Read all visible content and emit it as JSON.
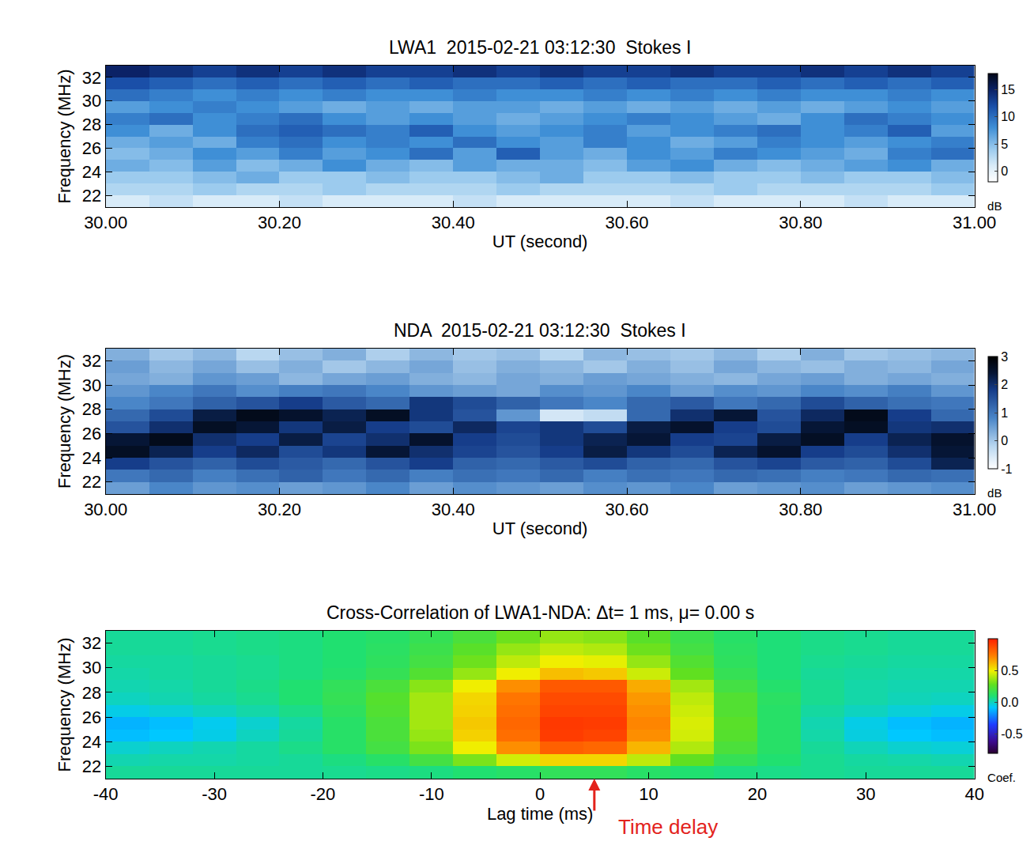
{
  "chart_data": [
    {
      "type": "heatmap",
      "title": "LWA1  2015-02-21 03:12:30  Stokes I",
      "x_label": "UT (second)",
      "y_label": "Frequency (MHz)",
      "x": [
        30.025,
        30.075,
        30.125,
        30.175,
        30.225,
        30.275,
        30.325,
        30.375,
        30.425,
        30.475,
        30.525,
        30.575,
        30.625,
        30.675,
        30.725,
        30.775,
        30.825,
        30.875,
        30.925,
        30.975
      ],
      "y": [
        21.5,
        22.5,
        23.5,
        24.5,
        25.5,
        26.5,
        27.5,
        28.5,
        29.5,
        30.5,
        31.5,
        32.5
      ],
      "z": [
        [
          1,
          2,
          1,
          1,
          2,
          1,
          1,
          1,
          2,
          1,
          1,
          1,
          1,
          2,
          1,
          1,
          1,
          2,
          1,
          1
        ],
        [
          3,
          3,
          4,
          3,
          3,
          4,
          3,
          3,
          3,
          4,
          3,
          3,
          3,
          3,
          4,
          3,
          3,
          3,
          3,
          4
        ],
        [
          4,
          4,
          5,
          6,
          4,
          4,
          5,
          4,
          4,
          5,
          6,
          4,
          4,
          5,
          4,
          4,
          5,
          4,
          4,
          5
        ],
        [
          6,
          5,
          7,
          5,
          6,
          8,
          6,
          5,
          7,
          6,
          6,
          5,
          7,
          8,
          6,
          5,
          6,
          7,
          8,
          6
        ],
        [
          5,
          6,
          8,
          7,
          9,
          7,
          8,
          10,
          7,
          11,
          7,
          6,
          8,
          7,
          9,
          8,
          7,
          6,
          9,
          10
        ],
        [
          6,
          7,
          6,
          9,
          10,
          8,
          9,
          8,
          10,
          8,
          7,
          9,
          8,
          6,
          7,
          9,
          8,
          7,
          8,
          9
        ],
        [
          8,
          6,
          8,
          10,
          11,
          10,
          9,
          11,
          8,
          7,
          8,
          9,
          7,
          8,
          9,
          10,
          8,
          9,
          11,
          7
        ],
        [
          9,
          10,
          8,
          9,
          10,
          8,
          7,
          8,
          7,
          6,
          7,
          8,
          9,
          8,
          7,
          6,
          8,
          10,
          9,
          8
        ],
        [
          7,
          8,
          9,
          8,
          7,
          6,
          7,
          6,
          7,
          7,
          6,
          7,
          6,
          7,
          6,
          7,
          6,
          7,
          8,
          7
        ],
        [
          10,
          9,
          8,
          9,
          8,
          9,
          8,
          8,
          9,
          8,
          8,
          9,
          8,
          9,
          8,
          9,
          8,
          8,
          9,
          8
        ],
        [
          12,
          11,
          10,
          11,
          10,
          11,
          10,
          11,
          10,
          10,
          11,
          10,
          11,
          10,
          10,
          11,
          10,
          11,
          10,
          11
        ],
        [
          15,
          14,
          13,
          14,
          13,
          14,
          13,
          13,
          14,
          13,
          14,
          13,
          13,
          14,
          13,
          13,
          14,
          13,
          14,
          13
        ]
      ],
      "xlim": [
        30,
        31
      ],
      "xticks": [
        {
          "value": 30,
          "label": "30.00"
        },
        {
          "value": 30.2,
          "label": "30.20"
        },
        {
          "value": 30.4,
          "label": "30.40"
        },
        {
          "value": 30.6,
          "label": "30.60"
        },
        {
          "value": 30.8,
          "label": "30.80"
        },
        {
          "value": 31,
          "label": "31.00"
        }
      ],
      "ylim": [
        21,
        33
      ],
      "yticks": [
        22,
        24,
        26,
        28,
        30,
        32
      ],
      "colorbar": {
        "label": "dB",
        "zlim": [
          -2,
          18
        ],
        "ticks": [
          0,
          5,
          10,
          15
        ]
      }
    },
    {
      "type": "heatmap",
      "title": "NDA  2015-02-21 03:12:30  Stokes I",
      "x_label": "UT (second)",
      "y_label": "Frequency (MHz)",
      "x": [
        30.025,
        30.075,
        30.125,
        30.175,
        30.225,
        30.275,
        30.325,
        30.375,
        30.425,
        30.475,
        30.525,
        30.575,
        30.625,
        30.675,
        30.725,
        30.775,
        30.825,
        30.875,
        30.925,
        30.975
      ],
      "y": [
        21.5,
        22.5,
        23.5,
        24.5,
        25.5,
        26.5,
        27.5,
        28.5,
        29.5,
        30.5,
        31.5,
        32.5
      ],
      "z": [
        [
          0.5,
          0.8,
          0.6,
          0.7,
          0.5,
          0.6,
          0.8,
          0.5,
          0.7,
          0.6,
          0.5,
          0.7,
          0.6,
          0.8,
          0.5,
          0.6,
          0.7,
          0.5,
          0.6,
          0.7
        ],
        [
          1.0,
          1.2,
          0.9,
          1.1,
          1.3,
          1.0,
          1.2,
          0.9,
          1.1,
          1.0,
          1.2,
          0.9,
          1.1,
          1.0,
          1.2,
          1.1,
          0.9,
          1.0,
          1.2,
          1.1
        ],
        [
          1.8,
          1.5,
          1.3,
          1.6,
          1.4,
          1.2,
          1.5,
          1.8,
          1.3,
          1.2,
          1.4,
          1.6,
          1.3,
          1.2,
          1.5,
          1.7,
          1.4,
          1.3,
          1.6,
          2.2
        ],
        [
          2.6,
          2.2,
          1.8,
          2.1,
          1.6,
          1.9,
          2.4,
          2.0,
          1.7,
          1.5,
          1.8,
          2.3,
          1.9,
          1.6,
          2.2,
          2.5,
          1.8,
          1.6,
          2.0,
          2.4
        ],
        [
          2.4,
          2.7,
          2.0,
          1.8,
          2.3,
          1.7,
          2.0,
          2.5,
          1.8,
          1.6,
          1.9,
          2.2,
          2.4,
          1.8,
          1.7,
          2.3,
          2.6,
          1.8,
          2.2,
          2.5
        ],
        [
          1.5,
          2.0,
          2.6,
          2.4,
          1.9,
          2.3,
          1.8,
          1.6,
          2.1,
          1.7,
          1.9,
          1.6,
          2.3,
          2.5,
          1.8,
          1.6,
          2.4,
          2.6,
          1.9,
          2.0
        ],
        [
          1.2,
          1.6,
          2.3,
          2.7,
          2.5,
          2.2,
          2.6,
          1.9,
          1.5,
          0.6,
          -0.5,
          -0.3,
          1.2,
          2.0,
          2.4,
          1.5,
          2.1,
          2.7,
          1.8,
          1.2
        ],
        [
          0.8,
          1.0,
          1.3,
          1.5,
          1.8,
          1.4,
          1.2,
          1.9,
          1.6,
          1.3,
          1.0,
          0.8,
          1.2,
          1.4,
          1.0,
          1.2,
          1.6,
          1.3,
          1.1,
          1.0
        ],
        [
          0.6,
          0.8,
          1.0,
          0.7,
          0.9,
          1.0,
          0.8,
          0.6,
          0.5,
          0.4,
          0.7,
          0.6,
          0.8,
          0.5,
          0.7,
          0.6,
          0.8,
          0.7,
          0.9,
          0.6
        ],
        [
          0.4,
          0.3,
          0.6,
          0.5,
          0.2,
          0.4,
          0.5,
          0.3,
          0.2,
          0.4,
          0.3,
          0.5,
          0.4,
          0.3,
          0.2,
          0.4,
          0.5,
          0.3,
          0.4,
          0.3
        ],
        [
          0.5,
          0.2,
          0.4,
          0.1,
          0.3,
          0.0,
          0.2,
          0.4,
          0.1,
          0.3,
          0.2,
          0.0,
          0.3,
          0.1,
          0.4,
          0.2,
          0.1,
          0.3,
          0.2,
          0.4
        ],
        [
          0.3,
          0.0,
          0.2,
          -0.2,
          0.1,
          0.3,
          -0.1,
          0.2,
          0.0,
          0.1,
          -0.2,
          0.2,
          0.1,
          0.0,
          0.2,
          -0.1,
          0.3,
          0.0,
          0.1,
          0.2
        ]
      ],
      "xlim": [
        30,
        31
      ],
      "xticks": [
        {
          "value": 30,
          "label": "30.00"
        },
        {
          "value": 30.2,
          "label": "30.20"
        },
        {
          "value": 30.4,
          "label": "30.40"
        },
        {
          "value": 30.6,
          "label": "30.60"
        },
        {
          "value": 30.8,
          "label": "30.80"
        },
        {
          "value": 31,
          "label": "31.00"
        }
      ],
      "ylim": [
        21,
        33
      ],
      "yticks": [
        22,
        24,
        26,
        28,
        30,
        32
      ],
      "colorbar": {
        "label": "dB",
        "zlim": [
          -1,
          3
        ],
        "ticks": [
          -1,
          0,
          1,
          2,
          3
        ]
      }
    },
    {
      "type": "heatmap",
      "title": "Cross-Correlation of LWA1-NDA: Δt= 1 ms, μ= 0.00 s",
      "x_label": "Lag time (ms)",
      "y_label": "Frequency (MHz)",
      "x": [
        -38,
        -34,
        -30,
        -26,
        -22,
        -18,
        -14,
        -10,
        -6,
        -2,
        2,
        6,
        10,
        14,
        18,
        22,
        26,
        30,
        34,
        38
      ],
      "y": [
        21.5,
        22.5,
        23.5,
        24.5,
        25.5,
        26.5,
        27.5,
        28.5,
        29.5,
        30.5,
        31.5,
        32.5
      ],
      "z": [
        [
          0.05,
          0.05,
          0.05,
          0.05,
          0.05,
          0.06,
          0.07,
          0.08,
          0.1,
          0.12,
          0.15,
          0.15,
          0.12,
          0.1,
          0.08,
          0.07,
          0.06,
          0.05,
          0.05,
          0.05
        ],
        [
          0.02,
          0.03,
          0.03,
          0.04,
          0.05,
          0.08,
          0.12,
          0.2,
          0.32,
          0.45,
          0.55,
          0.55,
          0.42,
          0.28,
          0.16,
          0.1,
          0.06,
          0.04,
          0.03,
          0.02
        ],
        [
          -0.02,
          0.0,
          0.02,
          0.04,
          0.07,
          0.12,
          0.2,
          0.32,
          0.5,
          0.7,
          0.82,
          0.8,
          0.62,
          0.4,
          0.22,
          0.12,
          0.05,
          0.01,
          -0.02,
          -0.03
        ],
        [
          -0.1,
          -0.08,
          -0.05,
          0.0,
          0.05,
          0.12,
          0.22,
          0.36,
          0.56,
          0.78,
          0.92,
          0.9,
          0.7,
          0.45,
          0.25,
          0.12,
          0.03,
          -0.04,
          -0.08,
          -0.1
        ],
        [
          -0.12,
          -0.1,
          -0.06,
          -0.02,
          0.04,
          0.12,
          0.22,
          0.38,
          0.58,
          0.8,
          0.93,
          0.92,
          0.72,
          0.46,
          0.26,
          0.12,
          0.02,
          -0.05,
          -0.1,
          -0.12
        ],
        [
          -0.05,
          -0.03,
          0.0,
          0.03,
          0.07,
          0.14,
          0.24,
          0.38,
          0.56,
          0.78,
          0.9,
          0.9,
          0.7,
          0.44,
          0.24,
          0.12,
          0.04,
          0.0,
          -0.03,
          -0.05
        ],
        [
          0.0,
          0.02,
          0.04,
          0.06,
          0.1,
          0.16,
          0.25,
          0.38,
          0.55,
          0.76,
          0.88,
          0.88,
          0.68,
          0.42,
          0.24,
          0.13,
          0.06,
          0.03,
          0.01,
          0.0
        ],
        [
          0.02,
          0.03,
          0.05,
          0.07,
          0.1,
          0.15,
          0.22,
          0.34,
          0.5,
          0.7,
          0.84,
          0.84,
          0.64,
          0.38,
          0.2,
          0.11,
          0.06,
          0.03,
          0.02,
          0.02
        ],
        [
          0.03,
          0.04,
          0.05,
          0.06,
          0.08,
          0.11,
          0.16,
          0.24,
          0.36,
          0.5,
          0.6,
          0.58,
          0.44,
          0.28,
          0.16,
          0.09,
          0.05,
          0.04,
          0.03,
          0.03
        ],
        [
          0.04,
          0.04,
          0.05,
          0.06,
          0.08,
          0.1,
          0.14,
          0.2,
          0.3,
          0.42,
          0.5,
          0.48,
          0.36,
          0.24,
          0.14,
          0.09,
          0.06,
          0.05,
          0.04,
          0.04
        ],
        [
          0.05,
          0.05,
          0.06,
          0.07,
          0.08,
          0.1,
          0.13,
          0.18,
          0.26,
          0.36,
          0.42,
          0.4,
          0.3,
          0.2,
          0.13,
          0.09,
          0.07,
          0.06,
          0.05,
          0.05
        ],
        [
          0.05,
          0.05,
          0.06,
          0.07,
          0.08,
          0.1,
          0.12,
          0.16,
          0.22,
          0.3,
          0.36,
          0.34,
          0.26,
          0.18,
          0.12,
          0.09,
          0.07,
          0.06,
          0.05,
          0.05
        ]
      ],
      "xlim": [
        -40,
        40
      ],
      "xticks": [
        -40,
        -30,
        -20,
        -10,
        0,
        10,
        20,
        30,
        40
      ],
      "ylim": [
        21,
        33
      ],
      "yticks": [
        22,
        24,
        26,
        28,
        30,
        32
      ],
      "colorbar": {
        "label": "Coef.",
        "zlim": [
          -0.8,
          1.0
        ],
        "ticks": [
          -0.5,
          {
            "value": 0,
            "label": "0.0"
          },
          0.5
        ]
      },
      "annotations": [
        {
          "text": "Time delay",
          "x": 5,
          "color": "#e3231c"
        }
      ]
    }
  ]
}
